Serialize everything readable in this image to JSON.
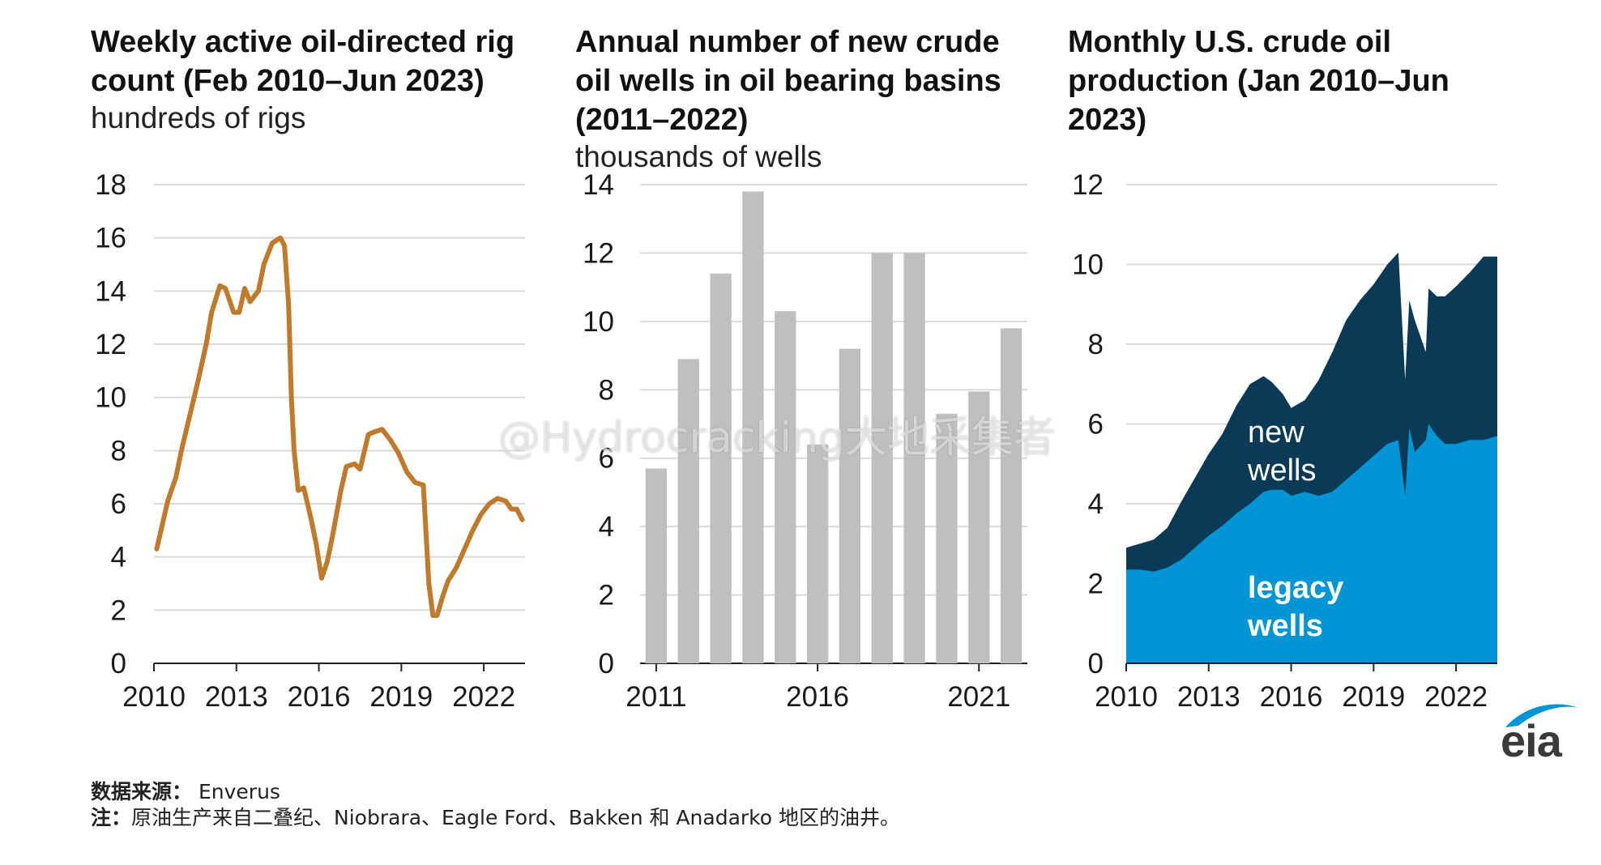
{
  "colors": {
    "rig_line": "#c07a2c",
    "bars": "#bfbfbf",
    "legacy": "#0096d6",
    "new_wells": "#0a3a55",
    "grid": "#d9d9d9",
    "eia_blue": "#0096d6"
  },
  "chart_data": [
    {
      "type": "line",
      "title": "Weekly active oil-directed rig count (Feb 2010–Jun 2023)",
      "title_lines": [
        "Weekly active oil-directed rig",
        "count (Feb 2010–Jun 2023)"
      ],
      "ylabel": "hundreds of rigs",
      "xlim": [
        2010,
        2023.5
      ],
      "ylim": [
        0,
        18
      ],
      "yticks": [
        0,
        2,
        4,
        6,
        8,
        10,
        12,
        14,
        16,
        18
      ],
      "xticks": [
        2010,
        2013,
        2016,
        2019,
        2022
      ],
      "series": [
        {
          "name": "oil-directed rigs",
          "x": [
            2010.1,
            2010.3,
            2010.5,
            2010.8,
            2011.0,
            2011.3,
            2011.6,
            2011.9,
            2012.1,
            2012.4,
            2012.6,
            2012.9,
            2013.1,
            2013.3,
            2013.5,
            2013.8,
            2014.0,
            2014.3,
            2014.6,
            2014.75,
            2014.9,
            2015.0,
            2015.1,
            2015.25,
            2015.45,
            2015.7,
            2015.9,
            2016.1,
            2016.3,
            2016.5,
            2016.8,
            2017.0,
            2017.3,
            2017.5,
            2017.8,
            2018.0,
            2018.3,
            2018.6,
            2018.9,
            2019.2,
            2019.5,
            2019.8,
            2020.0,
            2020.15,
            2020.3,
            2020.5,
            2020.7,
            2021.0,
            2021.3,
            2021.6,
            2021.9,
            2022.2,
            2022.5,
            2022.8,
            2023.0,
            2023.2,
            2023.4
          ],
          "values": [
            4.3,
            5.2,
            6.1,
            7.0,
            8.0,
            9.3,
            10.6,
            12.0,
            13.2,
            14.2,
            14.1,
            13.2,
            13.2,
            14.1,
            13.6,
            14.0,
            15.0,
            15.8,
            16.0,
            15.7,
            13.5,
            10.0,
            8.0,
            6.5,
            6.6,
            5.5,
            4.5,
            3.2,
            3.8,
            4.8,
            6.5,
            7.4,
            7.5,
            7.3,
            8.6,
            8.7,
            8.8,
            8.4,
            7.9,
            7.2,
            6.8,
            6.7,
            3.0,
            1.8,
            1.8,
            2.5,
            3.1,
            3.6,
            4.3,
            5.0,
            5.6,
            6.0,
            6.2,
            6.1,
            5.8,
            5.8,
            5.4
          ]
        }
      ]
    },
    {
      "type": "bar",
      "title": "Annual number of new crude oil wells in oil bearing basins (2011–2022)",
      "title_lines": [
        "Annual number of new crude",
        "oil wells in oil bearing basins",
        "(2011–2022)"
      ],
      "ylabel": "thousands of wells",
      "ylim": [
        0,
        14
      ],
      "yticks": [
        0,
        2,
        4,
        6,
        8,
        10,
        12,
        14
      ],
      "xtick_labels": [
        "2011",
        "2016",
        "2021"
      ],
      "categories": [
        "2011",
        "2012",
        "2013",
        "2014",
        "2015",
        "2016",
        "2017",
        "2018",
        "2019",
        "2020",
        "2021",
        "2022"
      ],
      "values": [
        5.7,
        8.9,
        11.4,
        13.8,
        10.3,
        6.4,
        9.2,
        12.0,
        12.0,
        7.3,
        7.95,
        9.8
      ]
    },
    {
      "type": "area",
      "title": "Monthly U.S. crude oil production (Jan 2010–Jun 2023)",
      "title_lines": [
        "Monthly U.S. crude oil",
        "production (Jan 2010–Jun",
        "2023)"
      ],
      "ylabel": "",
      "xlim": [
        2010,
        2023.5
      ],
      "ylim": [
        0,
        12
      ],
      "yticks": [
        0,
        2,
        4,
        6,
        8,
        10,
        12
      ],
      "xticks": [
        2010,
        2013,
        2016,
        2019,
        2022
      ],
      "x": [
        2010.0,
        2010.5,
        2011.0,
        2011.5,
        2012.0,
        2012.5,
        2013.0,
        2013.5,
        2014.0,
        2014.5,
        2015.0,
        2015.3,
        2015.7,
        2016.0,
        2016.5,
        2017.0,
        2017.5,
        2018.0,
        2018.5,
        2019.0,
        2019.5,
        2019.9,
        2020.15,
        2020.3,
        2020.5,
        2020.9,
        2021.0,
        2021.3,
        2021.6,
        2022.0,
        2022.5,
        2023.0,
        2023.5
      ],
      "series": [
        {
          "name": "legacy wells",
          "label_lines": [
            "legacy",
            "wells"
          ],
          "values": [
            2.35,
            2.35,
            2.3,
            2.4,
            2.6,
            2.9,
            3.2,
            3.45,
            3.75,
            4.0,
            4.3,
            4.35,
            4.35,
            4.2,
            4.3,
            4.2,
            4.3,
            4.6,
            4.9,
            5.2,
            5.5,
            5.6,
            4.2,
            5.9,
            5.3,
            5.6,
            6.0,
            5.7,
            5.5,
            5.5,
            5.6,
            5.6,
            5.7
          ]
        },
        {
          "name": "new wells",
          "label_lines": [
            "new",
            "wells"
          ],
          "values": [
            0.55,
            0.65,
            0.8,
            1.0,
            1.45,
            1.75,
            2.05,
            2.3,
            2.7,
            3.0,
            2.9,
            2.7,
            2.4,
            2.2,
            2.3,
            2.9,
            3.5,
            4.0,
            4.2,
            4.3,
            4.5,
            4.7,
            2.9,
            3.2,
            3.3,
            2.2,
            3.4,
            3.5,
            3.7,
            3.95,
            4.2,
            4.6,
            4.5
          ]
        }
      ]
    }
  ],
  "footer": {
    "source_label": "数据来源：",
    "source_value": "Enverus",
    "note_label": "注：",
    "note_value": "原油生产来自二叠纪、Niobrara、Eagle Ford、Bakken 和 Anadarko 地区的油井。"
  },
  "logo": {
    "text": "eia"
  },
  "watermark": "@Hydrocracking大地采集者"
}
